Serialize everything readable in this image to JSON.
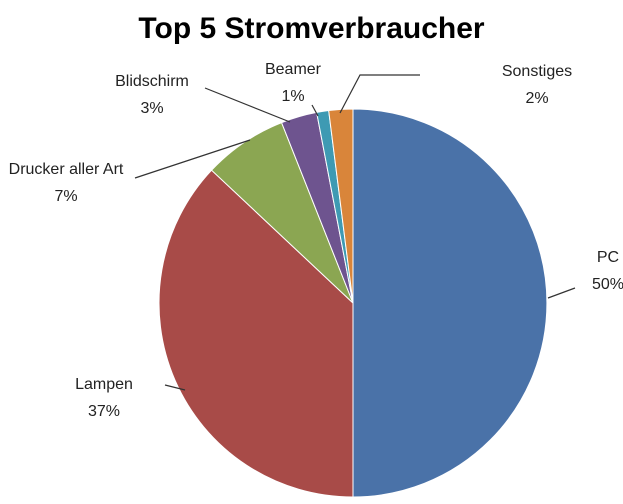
{
  "chart_data": {
    "type": "pie",
    "title": "Top 5 Stromverbraucher",
    "categories": [
      "PC",
      "Lampen",
      "Drucker aller Art",
      "Blidschirm",
      "Beamer",
      "Sonstiges"
    ],
    "values": [
      50,
      37,
      7,
      3,
      1,
      2
    ],
    "value_labels": [
      "50%",
      "37%",
      "7%",
      "3%",
      "1%",
      "2%"
    ],
    "colors": [
      "#4a72a8",
      "#a84b48",
      "#8ba652",
      "#6e548f",
      "#3e9ab3",
      "#d9853a"
    ]
  }
}
